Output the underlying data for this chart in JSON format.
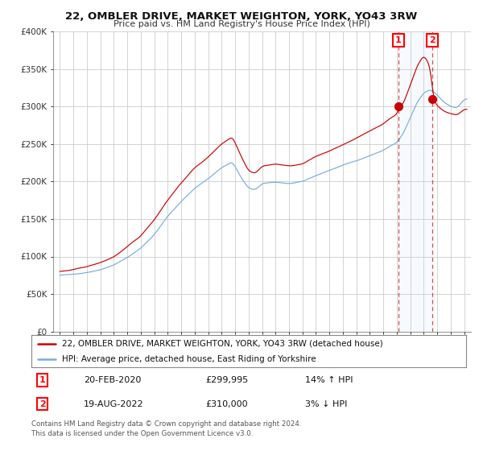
{
  "title": "22, OMBLER DRIVE, MARKET WEIGHTON, YORK, YO43 3RW",
  "subtitle": "Price paid vs. HM Land Registry's House Price Index (HPI)",
  "ylim": [
    0,
    400000
  ],
  "yticks": [
    0,
    50000,
    100000,
    150000,
    200000,
    250000,
    300000,
    350000,
    400000
  ],
  "ytick_labels": [
    "£0",
    "£50K",
    "£100K",
    "£150K",
    "£200K",
    "£250K",
    "£300K",
    "£350K",
    "£400K"
  ],
  "line1_color": "#cc0000",
  "line2_color": "#7aaddc",
  "shade_color": "#ddeeff",
  "background_color": "#ffffff",
  "grid_color": "#cccccc",
  "legend1": "22, OMBLER DRIVE, MARKET WEIGHTON, YORK, YO43 3RW (detached house)",
  "legend2": "HPI: Average price, detached house, East Riding of Yorkshire",
  "transaction1_date": "20-FEB-2020",
  "transaction1_price": "£299,995",
  "transaction1_hpi": "14% ↑ HPI",
  "transaction2_date": "19-AUG-2022",
  "transaction2_price": "£310,000",
  "transaction2_hpi": "3% ↓ HPI",
  "footer": "Contains HM Land Registry data © Crown copyright and database right 2024.\nThis data is licensed under the Open Government Licence v3.0.",
  "marker1_x": 2020.12,
  "marker1_y": 299995,
  "marker2_x": 2022.63,
  "marker2_y": 310000,
  "xlim_min": 1994.5,
  "xlim_max": 2025.5
}
